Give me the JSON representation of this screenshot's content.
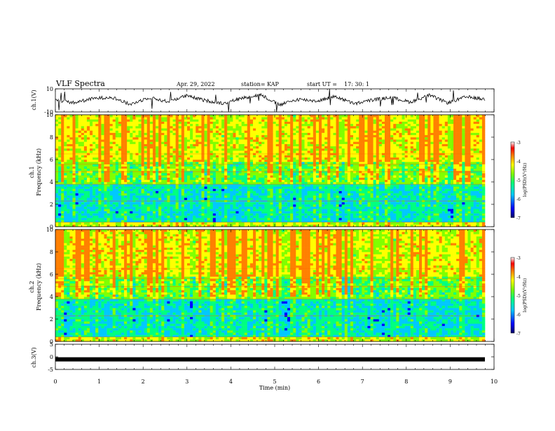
{
  "header": {
    "title": "VLF Spectra",
    "date": "Apr. 29, 2022",
    "station": "station= KAP",
    "start_label": "start  UT  =",
    "start_time": "17: 30: 1"
  },
  "chart_data": [
    {
      "type": "line",
      "panel": "ch1-waveform",
      "ylabel": "ch.1(V)",
      "ylim": [
        -10,
        10
      ],
      "yticks": [
        "10",
        "-10"
      ],
      "xlim": [
        0,
        10
      ],
      "series": [
        {
          "values": [
            0.5,
            -2.0,
            1.5,
            3.0,
            -3.5,
            2.5,
            -1.0,
            4.0,
            0.0,
            -2.5,
            2.0,
            5.0,
            -4.0,
            1.0,
            -0.5,
            3.5,
            -3.0,
            0.5,
            2.5,
            -1.5,
            4.5,
            -2.0,
            3.0,
            1.0
          ]
        }
      ]
    },
    {
      "type": "heatmap",
      "panel": "ch1-spectrogram",
      "ylabel": "ch.1\nFrequency (kHz)",
      "ylabel_lines": [
        "ch.1",
        "Frequency  (kHz)"
      ],
      "ylim": [
        0,
        10
      ],
      "yticks": [
        "0",
        "2",
        "4",
        "6",
        "8",
        "10"
      ],
      "xlim": [
        0,
        10
      ],
      "colorbar": {
        "label": "log(PSD)(V²/Hz)",
        "range": [
          -7,
          -3
        ],
        "ticks": [
          "-3",
          "-4",
          "-5",
          "-6",
          "-7"
        ]
      }
    },
    {
      "type": "heatmap",
      "panel": "ch2-spectrogram",
      "ylabel_lines": [
        "ch.2",
        "Frequency  (kHz)"
      ],
      "ylim": [
        0,
        10
      ],
      "yticks": [
        "0",
        "2",
        "4",
        "6",
        "8",
        "10"
      ],
      "xlim": [
        0,
        10
      ],
      "colorbar": {
        "label": "log(PSD)(V²/Hz)",
        "range": [
          -7,
          -3
        ],
        "ticks": [
          "-3",
          "-4",
          "-5",
          "-6",
          "-7"
        ]
      }
    },
    {
      "type": "line",
      "panel": "ch3-waveform",
      "ylabel": "ch.3(V)",
      "ylim": [
        -5,
        5
      ],
      "yticks": [
        "5",
        "0",
        "-5"
      ],
      "xlim": [
        0,
        10
      ],
      "xlabel": "Time  (min)",
      "xticks": [
        "0",
        "1",
        "2",
        "3",
        "4",
        "5",
        "6",
        "7",
        "8",
        "9",
        "10"
      ],
      "series": [
        {
          "values": [
            -1,
            -1,
            -1,
            -1,
            -1,
            -1,
            -1,
            -1,
            -1,
            -1,
            -1
          ]
        }
      ]
    }
  ],
  "colors": {
    "colormap": [
      "#000066",
      "#0000ff",
      "#00c8ff",
      "#00ff80",
      "#80ff00",
      "#ffff00",
      "#ff8000",
      "#ff0000",
      "#ffffff"
    ]
  }
}
